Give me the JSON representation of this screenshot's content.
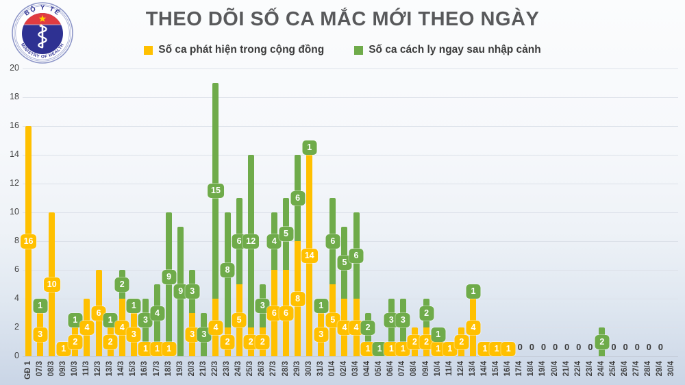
{
  "header": {
    "title": "THEO DÕI SỐ CA MẮC MỚI THEO NGÀY",
    "logo": {
      "top_text": "BỘ Y TẾ",
      "bottom_text": "MINISTRY OF HEALTH"
    }
  },
  "legend": {
    "community": "Số ca phát hiện trong cộng đồng",
    "imported": "Số ca cách ly ngay sau nhập cảnh"
  },
  "colors": {
    "community": "#FFC000",
    "imported": "#6FAB4A",
    "title_text": "#58595b",
    "axis_text": "#3F3F3F",
    "gridline": "#DCE1E9",
    "logo_navy": "#2E3192",
    "logo_red": "#E03C41",
    "logo_star_yellow": "#FFD100"
  },
  "chart_data": {
    "type": "bar",
    "stacked": true,
    "grid": true,
    "legend_position": "top",
    "bar_labels": "on_segments",
    "ylim": [
      0,
      20
    ],
    "ytick_step": 2,
    "categories": [
      "GĐ 1",
      "07/3",
      "08/3",
      "09/3",
      "10/3",
      "11/3",
      "12/3",
      "13/3",
      "14/3",
      "15/3",
      "16/3",
      "17/3",
      "18/3",
      "19/3",
      "20/3",
      "21/3",
      "22/3",
      "23/3",
      "24/3",
      "25/3",
      "26/3",
      "27/3",
      "28/3",
      "29/3",
      "30/3",
      "31/3",
      "01/4",
      "02/4",
      "03/4",
      "04/4",
      "05/4",
      "06/4",
      "07/4",
      "08/4",
      "09/4",
      "10/4",
      "11/4",
      "12/4",
      "13/4",
      "14/4",
      "15/4",
      "16/4",
      "17/4",
      "18/4",
      "19/4",
      "20/4",
      "21/4",
      "22/4",
      "23/4",
      "24/4",
      "25/4",
      "26/4",
      "27/4",
      "28/4",
      "29/4",
      "30/4"
    ],
    "series": [
      {
        "name": "Số ca phát hiện trong cộng đồng",
        "color": "#FFC000",
        "values": [
          16,
          3,
          10,
          1,
          2,
          4,
          6,
          2,
          4,
          3,
          1,
          1,
          1,
          0,
          3,
          0,
          4,
          2,
          5,
          2,
          2,
          6,
          6,
          8,
          14,
          3,
          5,
          4,
          4,
          1,
          0,
          1,
          1,
          2,
          2,
          1,
          1,
          2,
          4,
          1,
          1,
          1,
          0,
          0,
          0,
          0,
          0,
          0,
          0,
          0,
          0,
          0,
          0,
          0,
          0,
          0
        ]
      },
      {
        "name": "Số ca cách ly ngay sau nhập cảnh",
        "color": "#6FAB4A",
        "values": [
          0,
          1,
          0,
          0,
          1,
          0,
          0,
          1,
          2,
          1,
          3,
          4,
          9,
          9,
          3,
          3,
          15,
          8,
          6,
          12,
          3,
          4,
          5,
          6,
          1,
          1,
          6,
          5,
          6,
          2,
          1,
          3,
          3,
          0,
          2,
          1,
          0,
          0,
          1,
          0,
          0,
          0,
          0,
          0,
          0,
          0,
          0,
          0,
          0,
          2,
          0,
          0,
          0,
          0,
          0,
          0
        ]
      }
    ],
    "zero_label_categories": [
      "17/4",
      "18/4",
      "19/4",
      "20/4",
      "21/4",
      "22/4",
      "23/4",
      "25/4",
      "26/4",
      "27/4",
      "28/4",
      "29/4"
    ]
  }
}
